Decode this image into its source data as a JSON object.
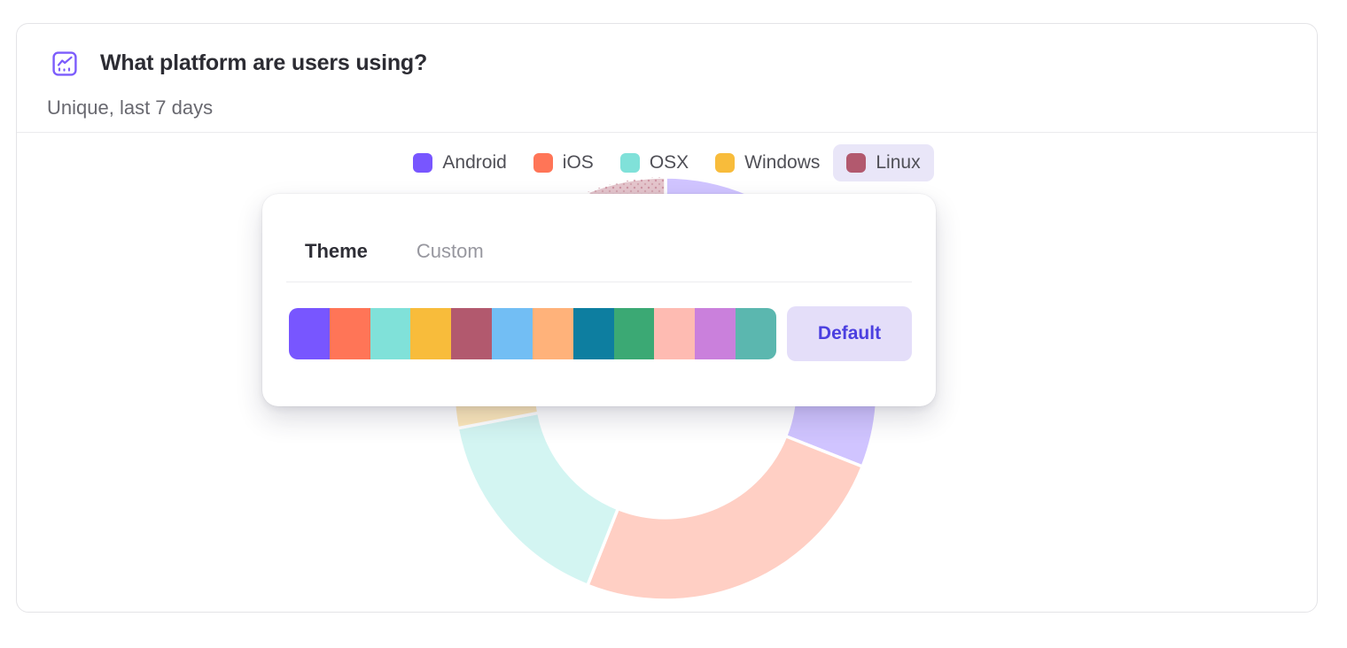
{
  "card": {
    "title": "What platform are users using?",
    "subtitle": "Unique, last 7 days"
  },
  "legend": {
    "items": [
      {
        "label": "Android",
        "color": "#7856FF",
        "highlighted": false
      },
      {
        "label": "iOS",
        "color": "#FF7557",
        "highlighted": false
      },
      {
        "label": "OSX",
        "color": "#80E1D9",
        "highlighted": false
      },
      {
        "label": "Windows",
        "color": "#F8BC3B",
        "highlighted": false
      },
      {
        "label": "Linux",
        "color": "#B2596E",
        "highlighted": true
      }
    ],
    "highlight_bg": "#e9e6f8"
  },
  "popover": {
    "tabs": [
      {
        "label": "Theme",
        "active": true
      },
      {
        "label": "Custom",
        "active": false
      }
    ],
    "palette_colors": [
      "#7856FF",
      "#FF7557",
      "#80E1D9",
      "#F8BC3B",
      "#B2596E",
      "#72BEF4",
      "#FFB27A",
      "#0D7EA0",
      "#3BA974",
      "#FEBBB2",
      "#CA80DC",
      "#5BB7AF"
    ],
    "default_button_label": "Default"
  },
  "chart_data": {
    "type": "pie",
    "subtype": "donut",
    "title": "What platform are users using?",
    "labels": [
      "Android",
      "iOS",
      "OSX",
      "Windows",
      "Linux"
    ],
    "values": [
      31,
      25,
      16,
      22,
      6
    ],
    "unit": "percent (estimated from arc angles)",
    "series_colors": [
      "#7856FF",
      "#FF7557",
      "#80E1D9",
      "#F8BC3B",
      "#B2596E"
    ],
    "start_angle_deg": 0,
    "direction": "clockwise",
    "inner_radius_ratio": 0.61,
    "legend_position": "top",
    "slices_dimmed_opacity": 0.35,
    "highlighted_slice": "Linux",
    "highlight_texture": "dots"
  },
  "ui_colors": {
    "accent": "#7856FF",
    "button_bg": "#e4def9",
    "button_text": "#4b3fe0",
    "card_border": "#e4e4e7"
  }
}
